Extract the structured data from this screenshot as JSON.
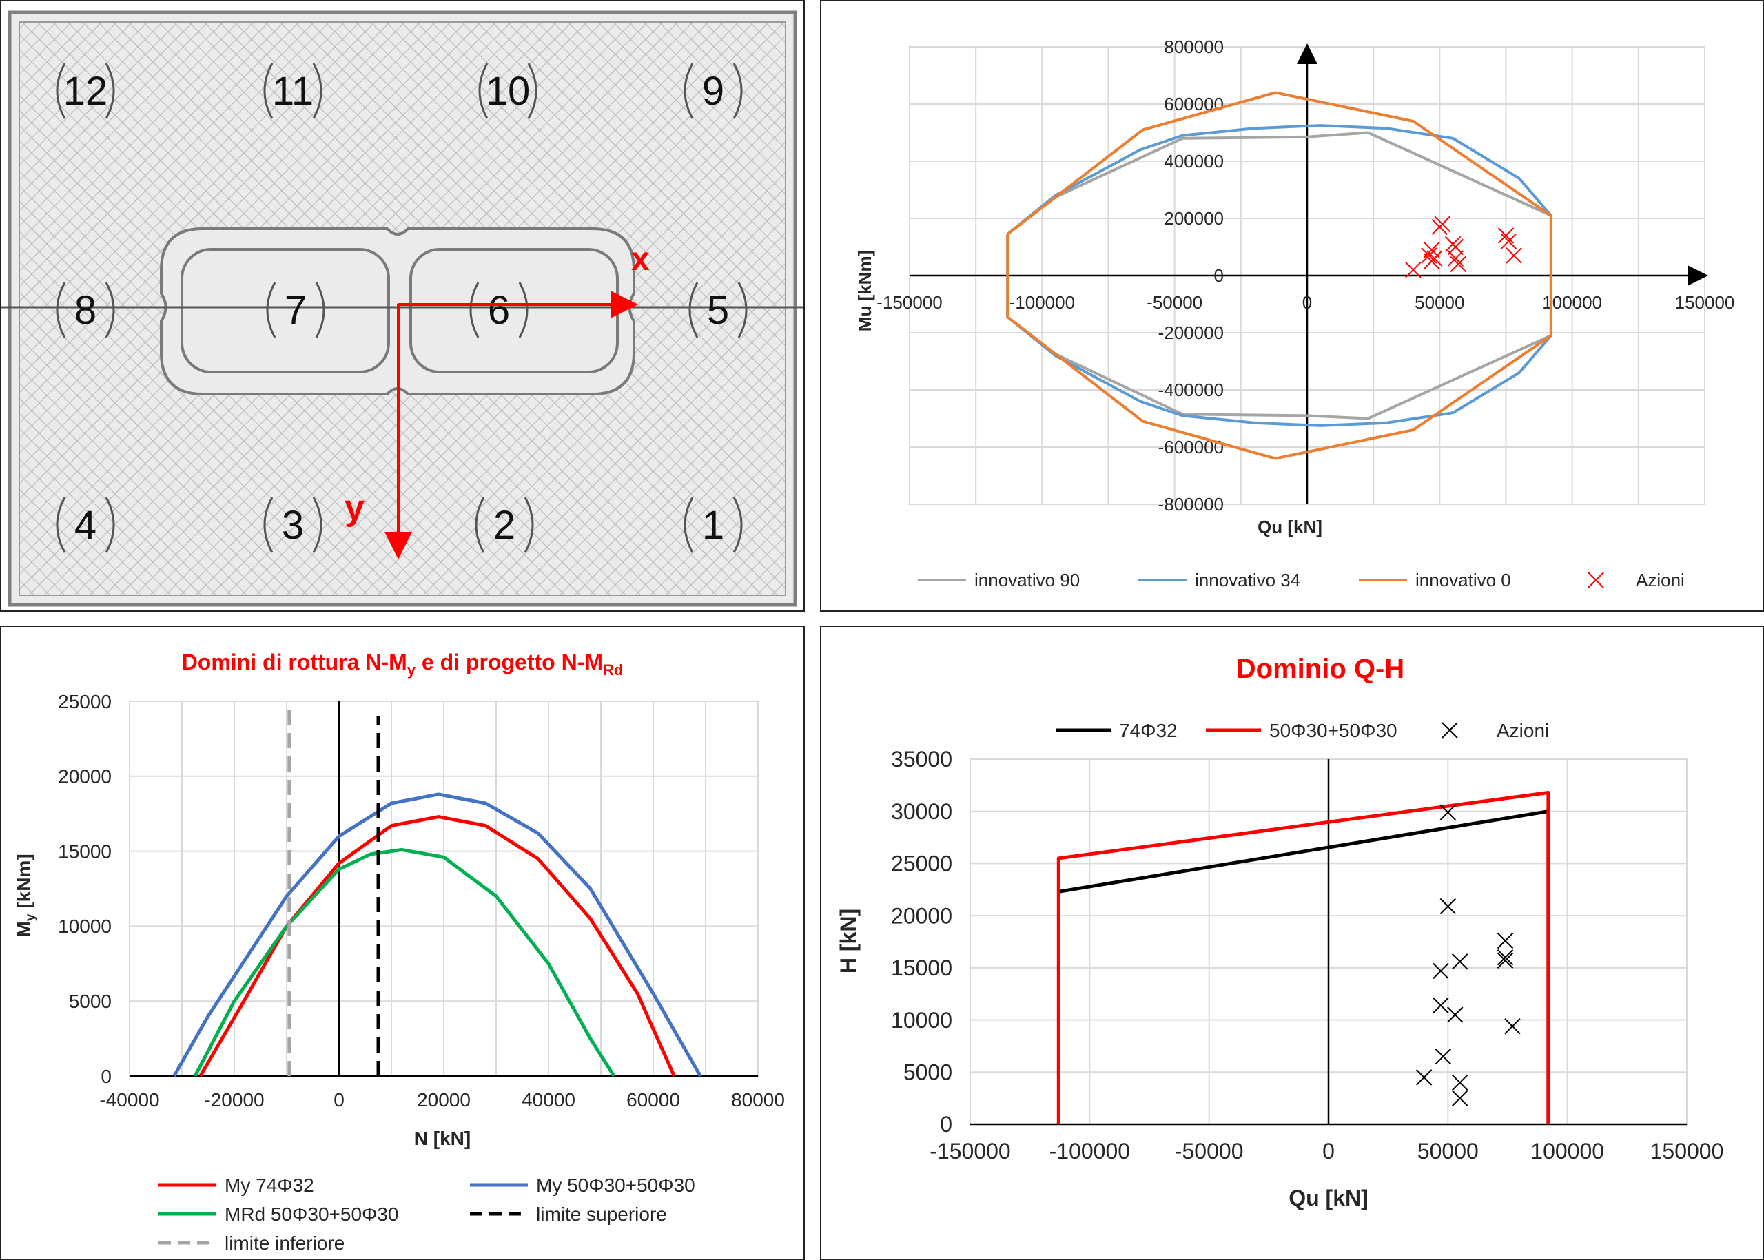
{
  "section_diagram": {
    "labels": [
      "1",
      "2",
      "3",
      "4",
      "5",
      "6",
      "7",
      "8",
      "9",
      "10",
      "11",
      "12"
    ],
    "x_axis_label": "x",
    "y_axis_label": "y"
  },
  "colors": {
    "gray": "#a5a5a5",
    "blue": "#5b9bd5",
    "orange": "#ed7d31",
    "red": "#ff0000",
    "green": "#00b050",
    "navy": "#4472c4",
    "black": "#000000"
  },
  "chart_data": [
    {
      "id": "mu-qu",
      "type": "line",
      "title": "",
      "xlabel": "Qu [kN]",
      "ylabel": "Mu [kNm]",
      "xlim": [
        -150000,
        150000
      ],
      "ylim": [
        -800000,
        800000
      ],
      "xticks": [
        "-150000",
        "-100000",
        "-50000",
        "0",
        "50000",
        "100000",
        "150000"
      ],
      "yticks": [
        "800000",
        "600000",
        "400000",
        "200000",
        "0",
        "-200000",
        "-400000",
        "-600000",
        "-800000"
      ],
      "grid": true,
      "legend": "bottom",
      "series": [
        {
          "name": "innovativo 90",
          "color": "#a5a5a5",
          "points": [
            [
              -113000,
              145000
            ],
            [
              -96000,
              270000
            ],
            [
              -47000,
              480000
            ],
            [
              0,
              485000
            ],
            [
              23000,
              500000
            ],
            [
              92000,
              210000
            ],
            [
              92000,
              -210000
            ],
            [
              23000,
              -500000
            ],
            [
              0,
              -490000
            ],
            [
              -47000,
              -485000
            ],
            [
              -96000,
              -270000
            ],
            [
              -113000,
              -145000
            ],
            [
              -113000,
              145000
            ]
          ]
        },
        {
          "name": "innovativo 34",
          "color": "#5b9bd5",
          "points": [
            [
              -113000,
              145000
            ],
            [
              -95000,
              280000
            ],
            [
              -63000,
              440000
            ],
            [
              -47000,
              490000
            ],
            [
              -20000,
              515000
            ],
            [
              5000,
              525000
            ],
            [
              30000,
              515000
            ],
            [
              55000,
              480000
            ],
            [
              80000,
              340000
            ],
            [
              92000,
              210000
            ],
            [
              92000,
              -210000
            ],
            [
              80000,
              -340000
            ],
            [
              55000,
              -480000
            ],
            [
              30000,
              -515000
            ],
            [
              5000,
              -525000
            ],
            [
              -20000,
              -515000
            ],
            [
              -47000,
              -490000
            ],
            [
              -63000,
              -440000
            ],
            [
              -95000,
              -280000
            ],
            [
              -113000,
              -145000
            ],
            [
              -113000,
              145000
            ]
          ]
        },
        {
          "name": "innovativo 0",
          "color": "#ed7d31",
          "points": [
            [
              -113000,
              145000
            ],
            [
              -62000,
              510000
            ],
            [
              -12000,
              640000
            ],
            [
              40000,
              540000
            ],
            [
              92000,
              210000
            ],
            [
              92000,
              -210000
            ],
            [
              40000,
              -540000
            ],
            [
              -12000,
              -640000
            ],
            [
              -62000,
              -510000
            ],
            [
              -113000,
              -145000
            ],
            [
              -113000,
              145000
            ]
          ]
        },
        {
          "name": "Azioni",
          "color": "#ff0000",
          "marker": "x",
          "points": [
            [
              51000,
              180000
            ],
            [
              50000,
              170000
            ],
            [
              55000,
              110000
            ],
            [
              56000,
              100000
            ],
            [
              56000,
              60000
            ],
            [
              57000,
              40000
            ],
            [
              47000,
              90000
            ],
            [
              46000,
              70000
            ],
            [
              48000,
              60000
            ],
            [
              47000,
              50000
            ],
            [
              40000,
              20000
            ],
            [
              75000,
              140000
            ],
            [
              76000,
              120000
            ],
            [
              78000,
              70000
            ]
          ]
        }
      ]
    },
    {
      "id": "n-my",
      "type": "line",
      "title": "Domini di rottura N-M",
      "title_sub": "y",
      "title_mid": " e di progetto N-M",
      "title_sub2": "Rd",
      "xlabel": "N [kN]",
      "ylabel": "M",
      "ylabel_sub": "y",
      "ylabel_unit": " [kNm]",
      "xlim": [
        -40000,
        80000
      ],
      "ylim": [
        0,
        25000
      ],
      "xticks": [
        "-40000",
        "-20000",
        "0",
        "20000",
        "40000",
        "60000",
        "80000"
      ],
      "yticks": [
        "25000",
        "20000",
        "15000",
        "10000",
        "5000",
        "0"
      ],
      "grid": true,
      "legend": "bottom",
      "series": [
        {
          "name": "My 74Φ32",
          "color": "#ff0000",
          "points": [
            [
              -26500,
              0
            ],
            [
              -19000,
              4500
            ],
            [
              -10000,
              10000
            ],
            [
              0,
              14200
            ],
            [
              10000,
              16700
            ],
            [
              19000,
              17300
            ],
            [
              28000,
              16700
            ],
            [
              38000,
              14500
            ],
            [
              48000,
              10500
            ],
            [
              57000,
              5500
            ],
            [
              64000,
              0
            ]
          ]
        },
        {
          "name": "My 50Φ30+50Φ30",
          "color": "#4472c4",
          "points": [
            [
              -31500,
              0
            ],
            [
              -25000,
              4000
            ],
            [
              -10000,
              12000
            ],
            [
              0,
              16000
            ],
            [
              10000,
              18200
            ],
            [
              19000,
              18800
            ],
            [
              28000,
              18200
            ],
            [
              38000,
              16200
            ],
            [
              48000,
              12500
            ],
            [
              60000,
              5500
            ],
            [
              69000,
              0
            ]
          ]
        },
        {
          "name": "MRd 50Φ30+50Φ30",
          "color": "#00b050",
          "points": [
            [
              -27500,
              0
            ],
            [
              -20000,
              5000
            ],
            [
              -10000,
              10000
            ],
            [
              0,
              13800
            ],
            [
              6000,
              14800
            ],
            [
              12000,
              15100
            ],
            [
              20000,
              14600
            ],
            [
              30000,
              12000
            ],
            [
              40000,
              7500
            ],
            [
              48000,
              2500
            ],
            [
              52500,
              0
            ]
          ]
        },
        {
          "name": "limite superiore",
          "color": "#000000",
          "dash": true,
          "points": [
            [
              7500,
              0
            ],
            [
              7500,
              24000
            ]
          ]
        },
        {
          "name": "limite inferiore",
          "color": "#a5a5a5",
          "dash": true,
          "points": [
            [
              -9500,
              0
            ],
            [
              -9500,
              25000
            ]
          ]
        }
      ]
    },
    {
      "id": "q-h",
      "type": "line",
      "title": "Dominio Q-H",
      "xlabel": "Qu [kN]",
      "ylabel": "H [kN]",
      "xlim": [
        -150000,
        150000
      ],
      "ylim": [
        0,
        35000
      ],
      "xticks": [
        "-150000",
        "-100000",
        "-50000",
        "0",
        "50000",
        "100000",
        "150000"
      ],
      "yticks": [
        "35000",
        "30000",
        "25000",
        "20000",
        "15000",
        "10000",
        "5000",
        "0"
      ],
      "grid": true,
      "legend": "top",
      "series": [
        {
          "name": "74Φ32",
          "color": "#000000",
          "points": [
            [
              -113000,
              22300
            ],
            [
              92000,
              30000
            ],
            [
              92000,
              0
            ]
          ]
        },
        {
          "name": "50Φ30+50Φ30",
          "color": "#ff0000",
          "points": [
            [
              -113000,
              0
            ],
            [
              -113000,
              25500
            ],
            [
              92000,
              31800
            ],
            [
              92000,
              0
            ]
          ]
        },
        {
          "name": "Azioni",
          "color": "#000000",
          "marker": "x",
          "points": [
            [
              50000,
              29900
            ],
            [
              50000,
              20900
            ],
            [
              47000,
              14700
            ],
            [
              55000,
              15600
            ],
            [
              74000,
              17600
            ],
            [
              74000,
              16000
            ],
            [
              74000,
              15700
            ],
            [
              47000,
              11400
            ],
            [
              53000,
              10500
            ],
            [
              77000,
              9400
            ],
            [
              48000,
              6500
            ],
            [
              40000,
              4500
            ],
            [
              55000,
              4000
            ],
            [
              55000,
              2500
            ]
          ]
        }
      ]
    }
  ]
}
